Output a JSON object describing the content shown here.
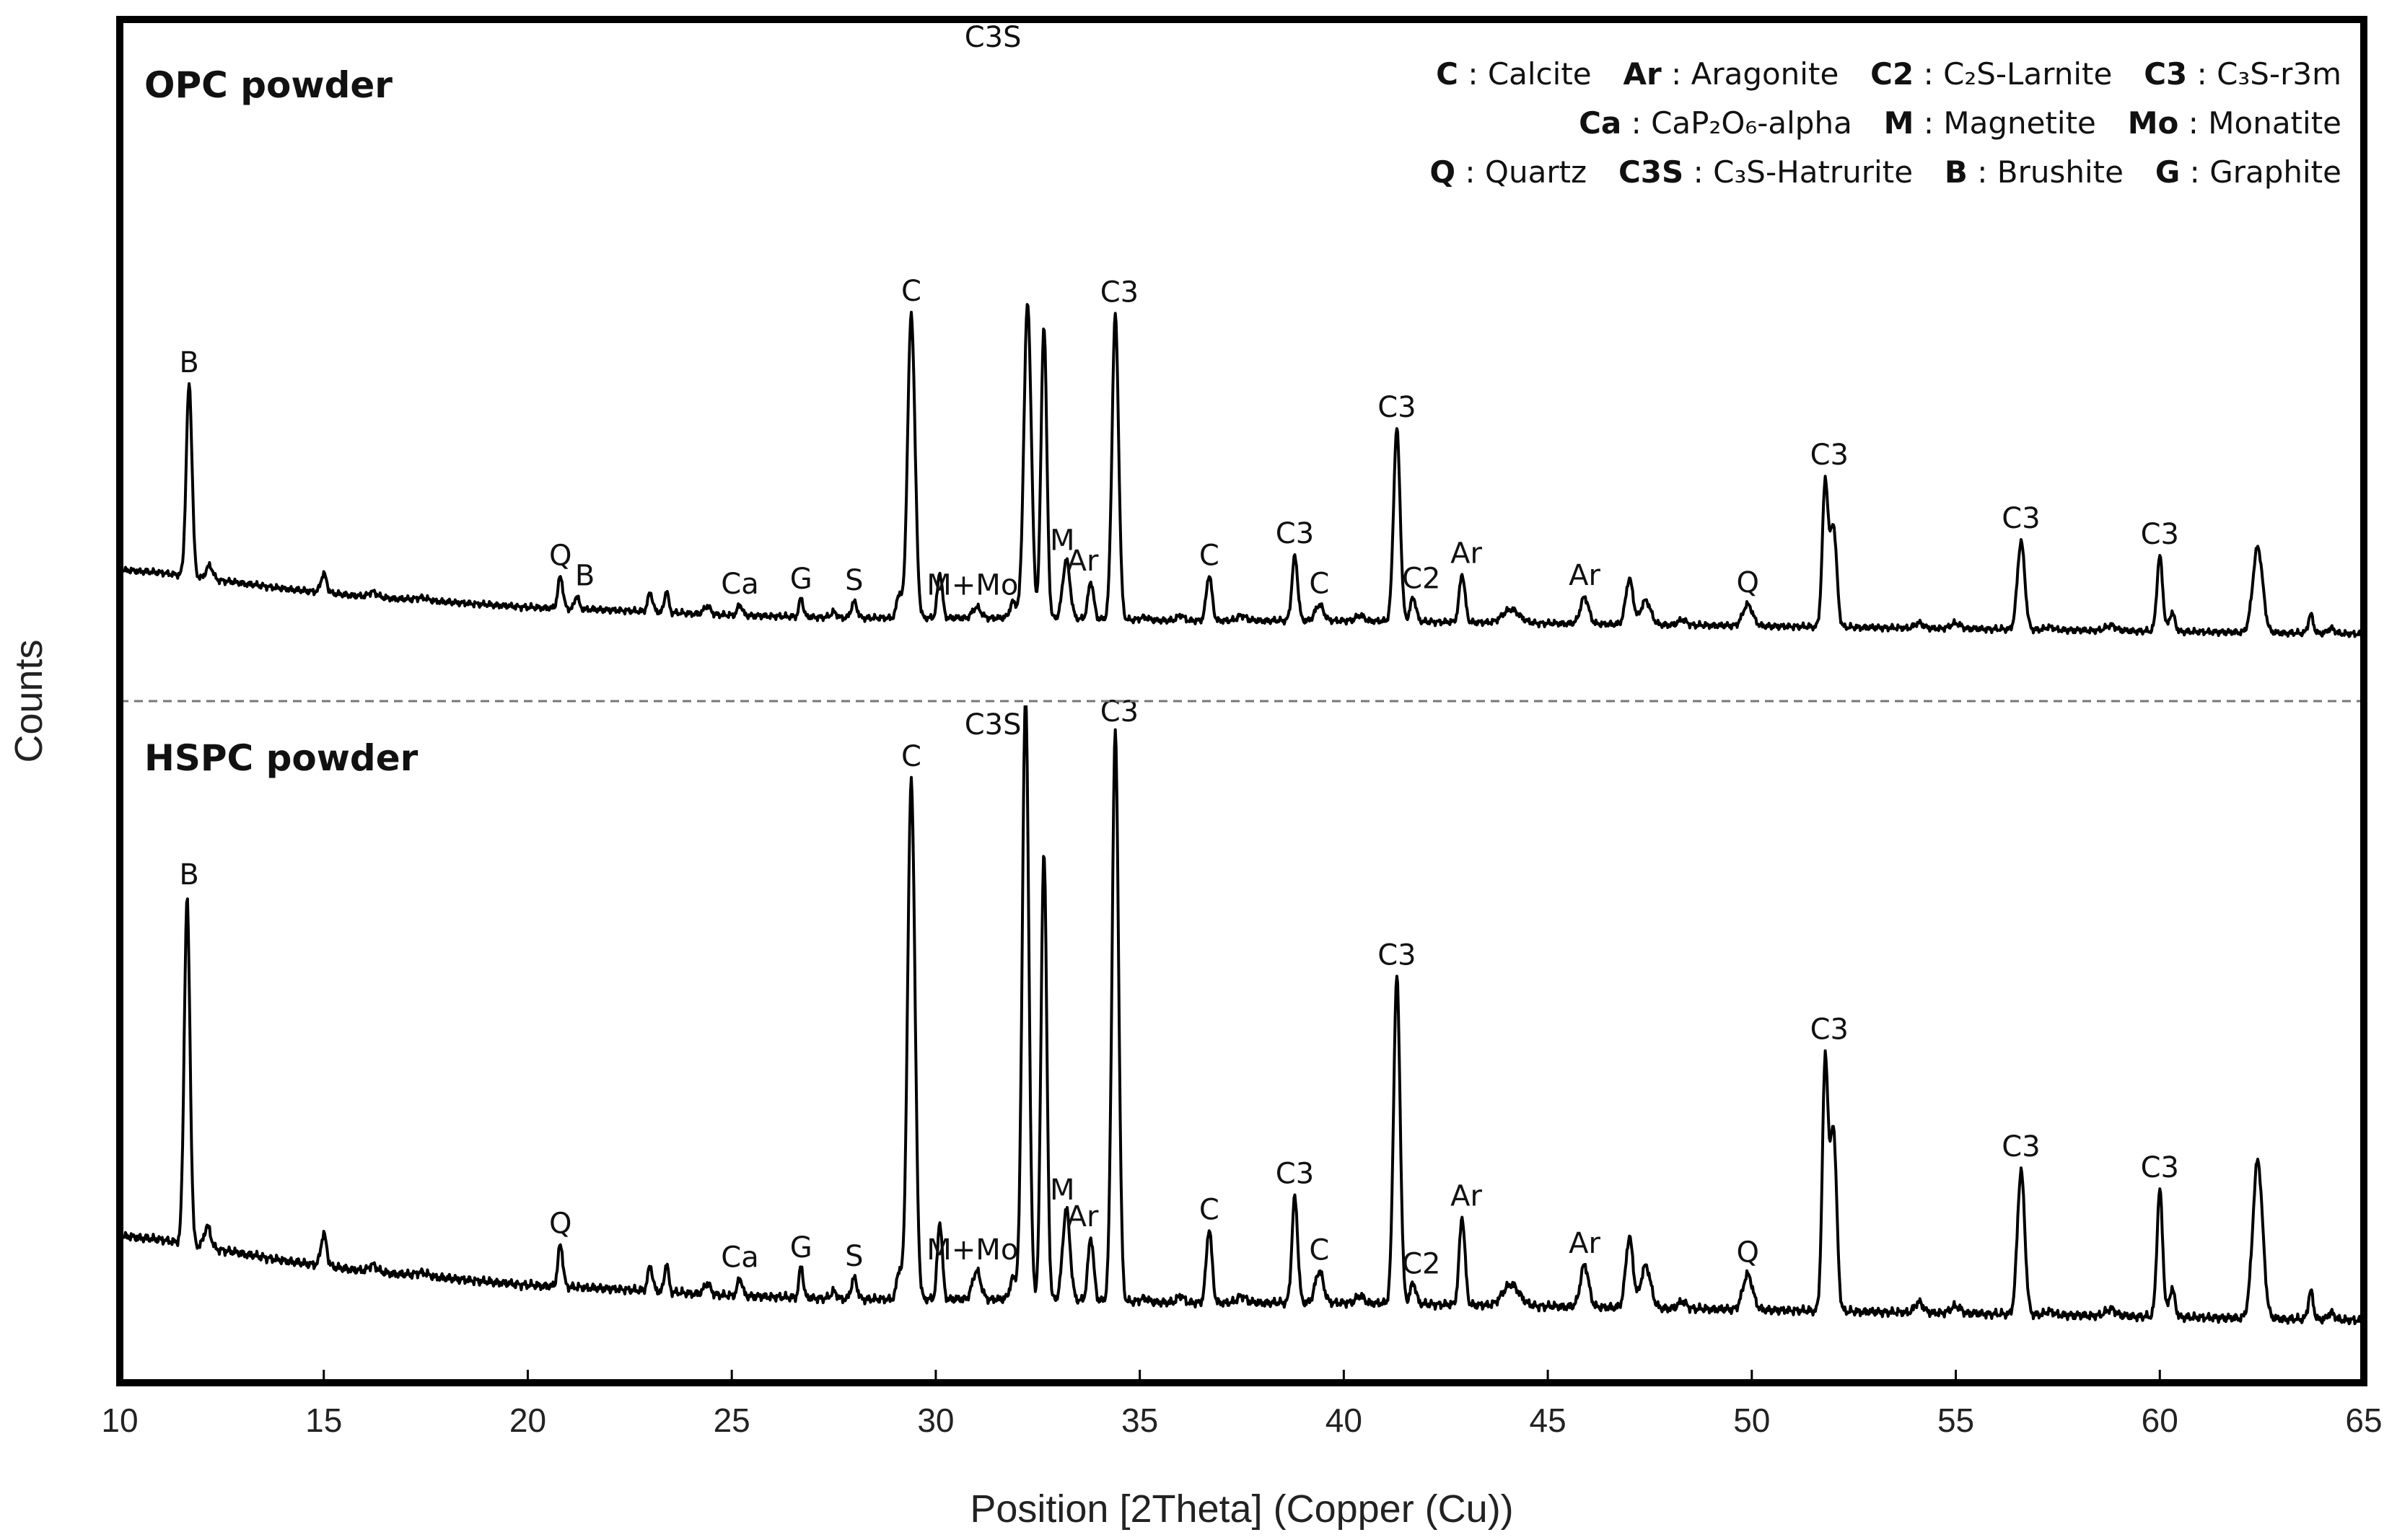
{
  "chart_data": {
    "type": "line",
    "xlabel": "Position [2Theta]  (Copper (Cu))",
    "ylabel": "Counts",
    "xlim": [
      10,
      65
    ],
    "xticks": [
      "10",
      "15",
      "20",
      "25",
      "30",
      "35",
      "40",
      "45",
      "50",
      "55",
      "60",
      "65"
    ],
    "grid": false,
    "legend_position": "top-right",
    "legend": [
      [
        {
          "key": "C",
          "sep": " : ",
          "desc": "Calcite"
        },
        {
          "key": "Ar",
          "sep": " : ",
          "desc": "Aragonite"
        },
        {
          "key": "C2",
          "sep": " : ",
          "desc": "C₂S-Larnite"
        },
        {
          "key": "C3",
          "sep": " : ",
          "desc": "C₃S-r3m"
        }
      ],
      [
        {
          "key": "Ca",
          "sep": " : ",
          "desc": "CaP₂O₆-alpha"
        },
        {
          "key": "M",
          "sep": " : ",
          "desc": "Magnetite"
        },
        {
          "key": "Mo",
          "sep": " : ",
          "desc": "Monatite"
        }
      ],
      [
        {
          "key": "Q",
          "sep": " : ",
          "desc": "Quartz"
        },
        {
          "key": "C3S",
          "sep": " : ",
          "desc": "C₃S-Hatrurite"
        },
        {
          "key": "B",
          "sep": " : ",
          "desc": "Brushite"
        },
        {
          "key": "G",
          "sep": " : ",
          "desc": "Graphite"
        }
      ]
    ],
    "panels": [
      {
        "title": "OPC powder",
        "baseline": [
          [
            10,
            0.27
          ],
          [
            11,
            0.26
          ],
          [
            12,
            0.24
          ],
          [
            13,
            0.22
          ],
          [
            14,
            0.2
          ],
          [
            16,
            0.17
          ],
          [
            18,
            0.15
          ],
          [
            20,
            0.13
          ],
          [
            22,
            0.12
          ],
          [
            25,
            0.1
          ],
          [
            28,
            0.09
          ],
          [
            32,
            0.09
          ],
          [
            36,
            0.08
          ],
          [
            40,
            0.08
          ],
          [
            45,
            0.07
          ],
          [
            50,
            0.06
          ],
          [
            55,
            0.05
          ],
          [
            60,
            0.04
          ],
          [
            65,
            0.03
          ]
        ],
        "peaks": [
          [
            11.7,
            0.72,
            0.07
          ],
          [
            12.2,
            0.05,
            0.08
          ],
          [
            15.0,
            0.07,
            0.07
          ],
          [
            16.2,
            0.02,
            0.1
          ],
          [
            17.4,
            0.01,
            0.15
          ],
          [
            20.8,
            0.12,
            0.06
          ],
          [
            21.2,
            0.05,
            0.05
          ],
          [
            23.0,
            0.07,
            0.06
          ],
          [
            23.4,
            0.08,
            0.05
          ],
          [
            24.4,
            0.03,
            0.08
          ],
          [
            25.2,
            0.04,
            0.06
          ],
          [
            26.7,
            0.07,
            0.05
          ],
          [
            27.5,
            0.02,
            0.07
          ],
          [
            28.0,
            0.06,
            0.07
          ],
          [
            29.1,
            0.09,
            0.06
          ],
          [
            29.4,
            1.14,
            0.09
          ],
          [
            30.1,
            0.17,
            0.06
          ],
          [
            31.0,
            0.04,
            0.1
          ],
          [
            31.9,
            0.06,
            0.08
          ],
          [
            32.25,
            1.18,
            0.09
          ],
          [
            32.65,
            1.1,
            0.07
          ],
          [
            33.2,
            0.22,
            0.09
          ],
          [
            33.8,
            0.14,
            0.07
          ],
          [
            34.4,
            1.14,
            0.08
          ],
          [
            35.1,
            0.01,
            0.1
          ],
          [
            36.0,
            0.02,
            0.08
          ],
          [
            36.7,
            0.17,
            0.07
          ],
          [
            37.5,
            0.02,
            0.1
          ],
          [
            38.8,
            0.24,
            0.07
          ],
          [
            39.4,
            0.06,
            0.1
          ],
          [
            40.4,
            0.02,
            0.1
          ],
          [
            41.3,
            0.72,
            0.08
          ],
          [
            41.7,
            0.09,
            0.07
          ],
          [
            42.9,
            0.18,
            0.07
          ],
          [
            44.1,
            0.05,
            0.2
          ],
          [
            45.9,
            0.1,
            0.1
          ],
          [
            47.0,
            0.17,
            0.09
          ],
          [
            47.4,
            0.09,
            0.12
          ],
          [
            48.3,
            0.02,
            0.1
          ],
          [
            49.9,
            0.08,
            0.12
          ],
          [
            51.8,
            0.54,
            0.07
          ],
          [
            52.0,
            0.38,
            0.08
          ],
          [
            54.1,
            0.02,
            0.1
          ],
          [
            55.0,
            0.02,
            0.12
          ],
          [
            56.6,
            0.33,
            0.09
          ],
          [
            57.3,
            0.01,
            0.1
          ],
          [
            58.8,
            0.02,
            0.12
          ],
          [
            60.0,
            0.28,
            0.07
          ],
          [
            60.3,
            0.07,
            0.07
          ],
          [
            62.4,
            0.32,
            0.12
          ],
          [
            63.7,
            0.07,
            0.06
          ],
          [
            64.2,
            0.02,
            0.08
          ]
        ],
        "labels": [
          {
            "text": "B",
            "x": 11.7
          },
          {
            "text": "Q",
            "x": 20.8
          },
          {
            "text": "B",
            "x": 21.4
          },
          {
            "text": "Ca",
            "x": 25.2
          },
          {
            "text": "G",
            "x": 26.7
          },
          {
            "text": "S",
            "x": 28.0
          },
          {
            "text": "C",
            "x": 29.4
          },
          {
            "text": "M+Mo",
            "x": 30.9
          },
          {
            "text": "C3S",
            "x": 31.4
          },
          {
            "text": "M",
            "x": 33.1
          },
          {
            "text": "Ar",
            "x": 33.6
          },
          {
            "text": "C3",
            "x": 34.5
          },
          {
            "text": "C",
            "x": 36.7
          },
          {
            "text": "C3",
            "x": 38.8
          },
          {
            "text": "C",
            "x": 39.4
          },
          {
            "text": "C3",
            "x": 41.3
          },
          {
            "text": "C2",
            "x": 41.9
          },
          {
            "text": "Ar",
            "x": 43.0
          },
          {
            "text": "Ar",
            "x": 45.9
          },
          {
            "text": "Q",
            "x": 49.9
          },
          {
            "text": "C3",
            "x": 51.9
          },
          {
            "text": "C3",
            "x": 56.6
          },
          {
            "text": "C3",
            "x": 60.0
          }
        ]
      },
      {
        "title": "HSPC powder",
        "baseline": [
          [
            10,
            0.27
          ],
          [
            11,
            0.26
          ],
          [
            12,
            0.24
          ],
          [
            13,
            0.22
          ],
          [
            14,
            0.2
          ],
          [
            16,
            0.17
          ],
          [
            18,
            0.15
          ],
          [
            20,
            0.13
          ],
          [
            22,
            0.12
          ],
          [
            25,
            0.1
          ],
          [
            28,
            0.09
          ],
          [
            32,
            0.09
          ],
          [
            36,
            0.08
          ],
          [
            40,
            0.08
          ],
          [
            45,
            0.07
          ],
          [
            50,
            0.06
          ],
          [
            55,
            0.05
          ],
          [
            60,
            0.04
          ],
          [
            65,
            0.03
          ]
        ],
        "peaks": [
          [
            11.65,
            0.98,
            0.07
          ],
          [
            12.15,
            0.06,
            0.08
          ],
          [
            15.0,
            0.09,
            0.07
          ],
          [
            16.2,
            0.02,
            0.1
          ],
          [
            17.4,
            0.01,
            0.15
          ],
          [
            20.8,
            0.12,
            0.06
          ],
          [
            23.0,
            0.07,
            0.06
          ],
          [
            23.4,
            0.08,
            0.05
          ],
          [
            24.4,
            0.03,
            0.08
          ],
          [
            25.2,
            0.05,
            0.06
          ],
          [
            26.7,
            0.09,
            0.05
          ],
          [
            27.5,
            0.02,
            0.07
          ],
          [
            28.0,
            0.06,
            0.07
          ],
          [
            29.1,
            0.08,
            0.06
          ],
          [
            29.4,
            1.48,
            0.09
          ],
          [
            30.1,
            0.22,
            0.06
          ],
          [
            31.0,
            0.08,
            0.1
          ],
          [
            31.9,
            0.06,
            0.08
          ],
          [
            32.2,
            1.72,
            0.08
          ],
          [
            32.65,
            1.28,
            0.07
          ],
          [
            33.2,
            0.26,
            0.09
          ],
          [
            33.8,
            0.18,
            0.07
          ],
          [
            34.4,
            1.62,
            0.08
          ],
          [
            35.1,
            0.01,
            0.1
          ],
          [
            36.0,
            0.02,
            0.08
          ],
          [
            36.7,
            0.21,
            0.07
          ],
          [
            37.5,
            0.02,
            0.1
          ],
          [
            38.8,
            0.3,
            0.07
          ],
          [
            39.4,
            0.09,
            0.1
          ],
          [
            40.4,
            0.02,
            0.1
          ],
          [
            41.3,
            0.93,
            0.08
          ],
          [
            41.7,
            0.06,
            0.07
          ],
          [
            42.9,
            0.25,
            0.07
          ],
          [
            44.1,
            0.06,
            0.2
          ],
          [
            45.9,
            0.12,
            0.1
          ],
          [
            47.0,
            0.2,
            0.09
          ],
          [
            47.4,
            0.12,
            0.12
          ],
          [
            48.3,
            0.02,
            0.1
          ],
          [
            49.9,
            0.1,
            0.12
          ],
          [
            51.8,
            0.71,
            0.07
          ],
          [
            52.0,
            0.52,
            0.08
          ],
          [
            54.1,
            0.03,
            0.1
          ],
          [
            55.0,
            0.02,
            0.12
          ],
          [
            56.6,
            0.41,
            0.09
          ],
          [
            57.3,
            0.01,
            0.1
          ],
          [
            58.8,
            0.02,
            0.12
          ],
          [
            60.0,
            0.36,
            0.07
          ],
          [
            60.3,
            0.08,
            0.07
          ],
          [
            62.4,
            0.45,
            0.12
          ],
          [
            63.7,
            0.08,
            0.06
          ],
          [
            64.2,
            0.02,
            0.08
          ]
        ],
        "labels": [
          {
            "text": "B",
            "x": 11.7
          },
          {
            "text": "Q",
            "x": 20.8
          },
          {
            "text": "Ca",
            "x": 25.2
          },
          {
            "text": "G",
            "x": 26.7
          },
          {
            "text": "S",
            "x": 28.0
          },
          {
            "text": "C",
            "x": 29.4
          },
          {
            "text": "M+Mo",
            "x": 30.9
          },
          {
            "text": "C3S",
            "x": 31.4
          },
          {
            "text": "M",
            "x": 33.1
          },
          {
            "text": "Ar",
            "x": 33.6
          },
          {
            "text": "C3",
            "x": 34.5
          },
          {
            "text": "C",
            "x": 36.7
          },
          {
            "text": "C3",
            "x": 38.8
          },
          {
            "text": "C",
            "x": 39.4
          },
          {
            "text": "C3",
            "x": 41.3
          },
          {
            "text": "C2",
            "x": 41.9
          },
          {
            "text": "Ar",
            "x": 43.0
          },
          {
            "text": "Ar",
            "x": 45.9
          },
          {
            "text": "Q",
            "x": 49.9
          },
          {
            "text": "C3",
            "x": 51.9
          },
          {
            "text": "C3",
            "x": 56.6
          },
          {
            "text": "C3",
            "x": 60.0
          }
        ]
      }
    ]
  }
}
